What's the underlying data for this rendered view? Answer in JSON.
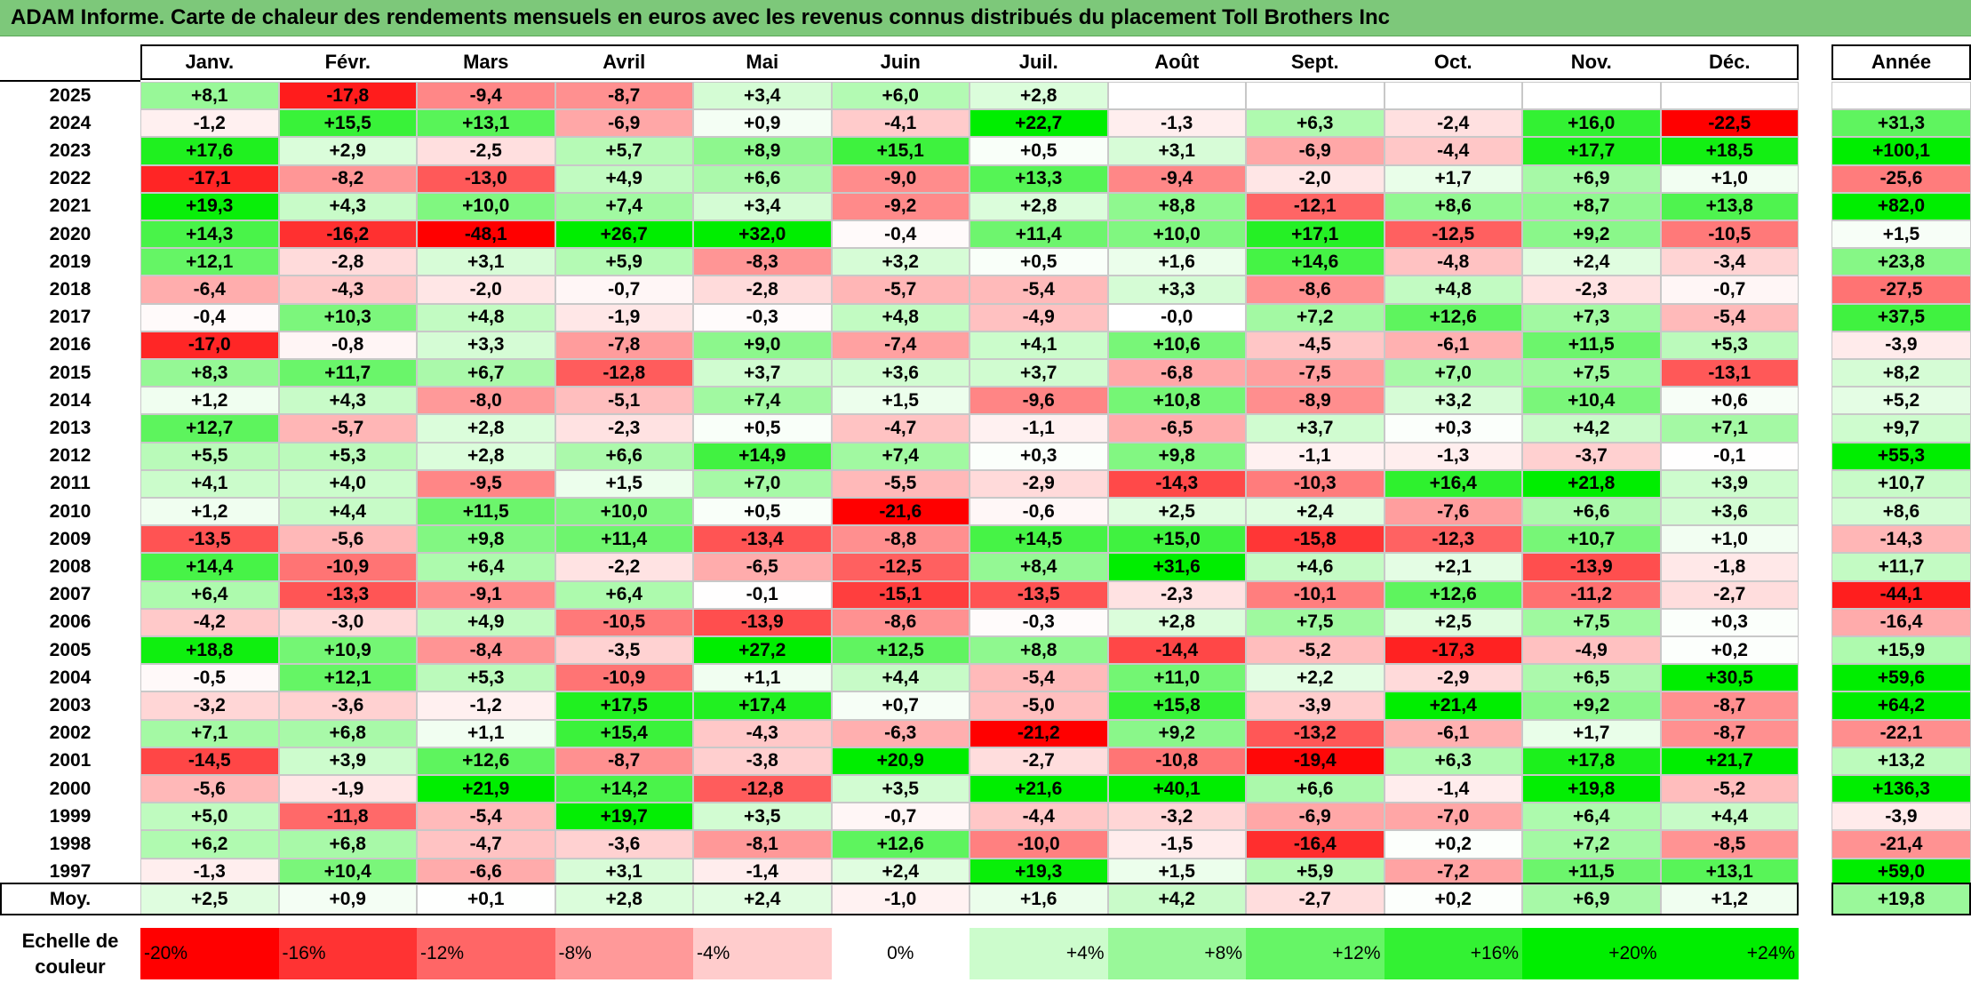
{
  "title": "ADAM Informe. Carte de chaleur des rendements mensuels en euros avec les revenus connus distribués du placement Toll Brothers Inc",
  "chart_data": {
    "type": "heatmap",
    "months": [
      "Janv.",
      "Févr.",
      "Mars",
      "Avril",
      "Mai",
      "Juin",
      "Juil.",
      "Août",
      "Sept.",
      "Oct.",
      "Nov.",
      "Déc."
    ],
    "year_header": "Année",
    "avg_label": "Moy.",
    "rows": [
      {
        "year": "2025",
        "values": [
          "+8,1",
          "-17,8",
          "-9,4",
          "-8,7",
          "+3,4",
          "+6,0",
          "+2,8",
          "",
          "",
          "",
          "",
          ""
        ],
        "annual": ""
      },
      {
        "year": "2024",
        "values": [
          "-1,2",
          "+15,5",
          "+13,1",
          "-6,9",
          "+0,9",
          "-4,1",
          "+22,7",
          "-1,3",
          "+6,3",
          "-2,4",
          "+16,0",
          "-22,5"
        ],
        "annual": "+31,3"
      },
      {
        "year": "2023",
        "values": [
          "+17,6",
          "+2,9",
          "-2,5",
          "+5,7",
          "+8,9",
          "+15,1",
          "+0,5",
          "+3,1",
          "-6,9",
          "-4,4",
          "+17,7",
          "+18,5"
        ],
        "annual": "+100,1"
      },
      {
        "year": "2022",
        "values": [
          "-17,1",
          "-8,2",
          "-13,0",
          "+4,9",
          "+6,6",
          "-9,0",
          "+13,3",
          "-9,4",
          "-2,0",
          "+1,7",
          "+6,9",
          "+1,0"
        ],
        "annual": "-25,6"
      },
      {
        "year": "2021",
        "values": [
          "+19,3",
          "+4,3",
          "+10,0",
          "+7,4",
          "+3,4",
          "-9,2",
          "+2,8",
          "+8,8",
          "-12,1",
          "+8,6",
          "+8,7",
          "+13,8"
        ],
        "annual": "+82,0"
      },
      {
        "year": "2020",
        "values": [
          "+14,3",
          "-16,2",
          "-48,1",
          "+26,7",
          "+32,0",
          "-0,4",
          "+11,4",
          "+10,0",
          "+17,1",
          "-12,5",
          "+9,2",
          "-10,5"
        ],
        "annual": "+1,5"
      },
      {
        "year": "2019",
        "values": [
          "+12,1",
          "-2,8",
          "+3,1",
          "+5,9",
          "-8,3",
          "+3,2",
          "+0,5",
          "+1,6",
          "+14,6",
          "-4,8",
          "+2,4",
          "-3,4"
        ],
        "annual": "+23,8"
      },
      {
        "year": "2018",
        "values": [
          "-6,4",
          "-4,3",
          "-2,0",
          "-0,7",
          "-2,8",
          "-5,7",
          "-5,4",
          "+3,3",
          "-8,6",
          "+4,8",
          "-2,3",
          "-0,7"
        ],
        "annual": "-27,5"
      },
      {
        "year": "2017",
        "values": [
          "-0,4",
          "+10,3",
          "+4,8",
          "-1,9",
          "-0,3",
          "+4,8",
          "-4,9",
          "-0,0",
          "+7,2",
          "+12,6",
          "+7,3",
          "-5,4"
        ],
        "annual": "+37,5"
      },
      {
        "year": "2016",
        "values": [
          "-17,0",
          "-0,8",
          "+3,3",
          "-7,8",
          "+9,0",
          "-7,4",
          "+4,1",
          "+10,6",
          "-4,5",
          "-6,1",
          "+11,5",
          "+5,3"
        ],
        "annual": "-3,9"
      },
      {
        "year": "2015",
        "values": [
          "+8,3",
          "+11,7",
          "+6,7",
          "-12,8",
          "+3,7",
          "+3,6",
          "+3,7",
          "-6,8",
          "-7,5",
          "+7,0",
          "+7,5",
          "-13,1"
        ],
        "annual": "+8,2"
      },
      {
        "year": "2014",
        "values": [
          "+1,2",
          "+4,3",
          "-8,0",
          "-5,1",
          "+7,4",
          "+1,5",
          "-9,6",
          "+10,8",
          "-8,9",
          "+3,2",
          "+10,4",
          "+0,6"
        ],
        "annual": "+5,2"
      },
      {
        "year": "2013",
        "values": [
          "+12,7",
          "-5,7",
          "+2,8",
          "-2,3",
          "+0,5",
          "-4,7",
          "-1,1",
          "-6,5",
          "+3,7",
          "+0,3",
          "+4,2",
          "+7,1"
        ],
        "annual": "+9,7"
      },
      {
        "year": "2012",
        "values": [
          "+5,5",
          "+5,3",
          "+2,8",
          "+6,6",
          "+14,9",
          "+7,4",
          "+0,3",
          "+9,8",
          "-1,1",
          "-1,3",
          "-3,7",
          "-0,1"
        ],
        "annual": "+55,3"
      },
      {
        "year": "2011",
        "values": [
          "+4,1",
          "+4,0",
          "-9,5",
          "+1,5",
          "+7,0",
          "-5,5",
          "-2,9",
          "-14,3",
          "-10,3",
          "+16,4",
          "+21,8",
          "+3,9"
        ],
        "annual": "+10,7"
      },
      {
        "year": "2010",
        "values": [
          "+1,2",
          "+4,4",
          "+11,5",
          "+10,0",
          "+0,5",
          "-21,6",
          "-0,6",
          "+2,5",
          "+2,4",
          "-7,6",
          "+6,6",
          "+3,6"
        ],
        "annual": "+8,6"
      },
      {
        "year": "2009",
        "values": [
          "-13,5",
          "-5,6",
          "+9,8",
          "+11,4",
          "-13,4",
          "-8,8",
          "+14,5",
          "+15,0",
          "-15,8",
          "-12,3",
          "+10,7",
          "+1,0"
        ],
        "annual": "-14,3"
      },
      {
        "year": "2008",
        "values": [
          "+14,4",
          "-10,9",
          "+6,4",
          "-2,2",
          "-6,5",
          "-12,5",
          "+8,4",
          "+31,6",
          "+4,6",
          "+2,1",
          "-13,9",
          "-1,8"
        ],
        "annual": "+11,7"
      },
      {
        "year": "2007",
        "values": [
          "+6,4",
          "-13,3",
          "-9,1",
          "+6,4",
          "-0,1",
          "-15,1",
          "-13,5",
          "-2,3",
          "-10,1",
          "+12,6",
          "-11,2",
          "-2,7"
        ],
        "annual": "-44,1"
      },
      {
        "year": "2006",
        "values": [
          "-4,2",
          "-3,0",
          "+4,9",
          "-10,5",
          "-13,9",
          "-8,6",
          "-0,3",
          "+2,8",
          "+7,5",
          "+2,5",
          "+7,5",
          "+0,3"
        ],
        "annual": "-16,4"
      },
      {
        "year": "2005",
        "values": [
          "+18,8",
          "+10,9",
          "-8,4",
          "-3,5",
          "+27,2",
          "+12,5",
          "+8,8",
          "-14,4",
          "-5,2",
          "-17,3",
          "-4,9",
          "+0,2"
        ],
        "annual": "+15,9"
      },
      {
        "year": "2004",
        "values": [
          "-0,5",
          "+12,1",
          "+5,3",
          "-10,9",
          "+1,1",
          "+4,4",
          "-5,4",
          "+11,0",
          "+2,2",
          "-2,9",
          "+6,5",
          "+30,5"
        ],
        "annual": "+59,6"
      },
      {
        "year": "2003",
        "values": [
          "-3,2",
          "-3,6",
          "-1,2",
          "+17,5",
          "+17,4",
          "+0,7",
          "-5,0",
          "+15,8",
          "-3,9",
          "+21,4",
          "+9,2",
          "-8,7"
        ],
        "annual": "+64,2"
      },
      {
        "year": "2002",
        "values": [
          "+7,1",
          "+6,8",
          "+1,1",
          "+15,4",
          "-4,3",
          "-6,3",
          "-21,2",
          "+9,2",
          "-13,2",
          "-6,1",
          "+1,7",
          "-8,7"
        ],
        "annual": "-22,1"
      },
      {
        "year": "2001",
        "values": [
          "-14,5",
          "+3,9",
          "+12,6",
          "-8,7",
          "-3,8",
          "+20,9",
          "-2,7",
          "-10,8",
          "-19,4",
          "+6,3",
          "+17,8",
          "+21,7"
        ],
        "annual": "+13,2"
      },
      {
        "year": "2000",
        "values": [
          "-5,6",
          "-1,9",
          "+21,9",
          "+14,2",
          "-12,8",
          "+3,5",
          "+21,6",
          "+40,1",
          "+6,6",
          "-1,4",
          "+19,8",
          "-5,2"
        ],
        "annual": "+136,3"
      },
      {
        "year": "1999",
        "values": [
          "+5,0",
          "-11,8",
          "-5,4",
          "+19,7",
          "+3,5",
          "-0,7",
          "-4,4",
          "-3,2",
          "-6,9",
          "-7,0",
          "+6,4",
          "+4,4"
        ],
        "annual": "-3,9"
      },
      {
        "year": "1998",
        "values": [
          "+6,2",
          "+6,8",
          "-4,7",
          "-3,6",
          "-8,1",
          "+12,6",
          "-10,0",
          "-1,5",
          "-16,4",
          "+0,2",
          "+7,2",
          "-8,5"
        ],
        "annual": "-21,4"
      },
      {
        "year": "1997",
        "values": [
          "-1,3",
          "+10,4",
          "-6,6",
          "+3,1",
          "-1,4",
          "+2,4",
          "+19,3",
          "+1,5",
          "+5,9",
          "-7,2",
          "+11,5",
          "+13,1"
        ],
        "annual": "+59,0"
      }
    ],
    "averages": {
      "values": [
        "+2,5",
        "+0,9",
        "+0,1",
        "+2,8",
        "+2,4",
        "-1,0",
        "+1,6",
        "+4,2",
        "-2,7",
        "+0,2",
        "+6,9",
        "+1,2"
      ],
      "annual": "+19,8"
    },
    "color_scale": {
      "label_line1": "Echelle de",
      "label_line2": "couleur",
      "stops": [
        "-20%",
        "-16%",
        "-12%",
        "-8%",
        "-4%",
        "0%",
        "+4%",
        "+8%",
        "+12%",
        "+16%",
        "+20%",
        "+24%"
      ],
      "stop_values": [
        -20,
        -16,
        -12,
        -8,
        -4,
        0,
        4,
        8,
        12,
        16,
        20,
        24
      ],
      "negative_color": "#ff0000",
      "positive_color": "#00ee00",
      "neutral_color": "#ffffff"
    }
  }
}
